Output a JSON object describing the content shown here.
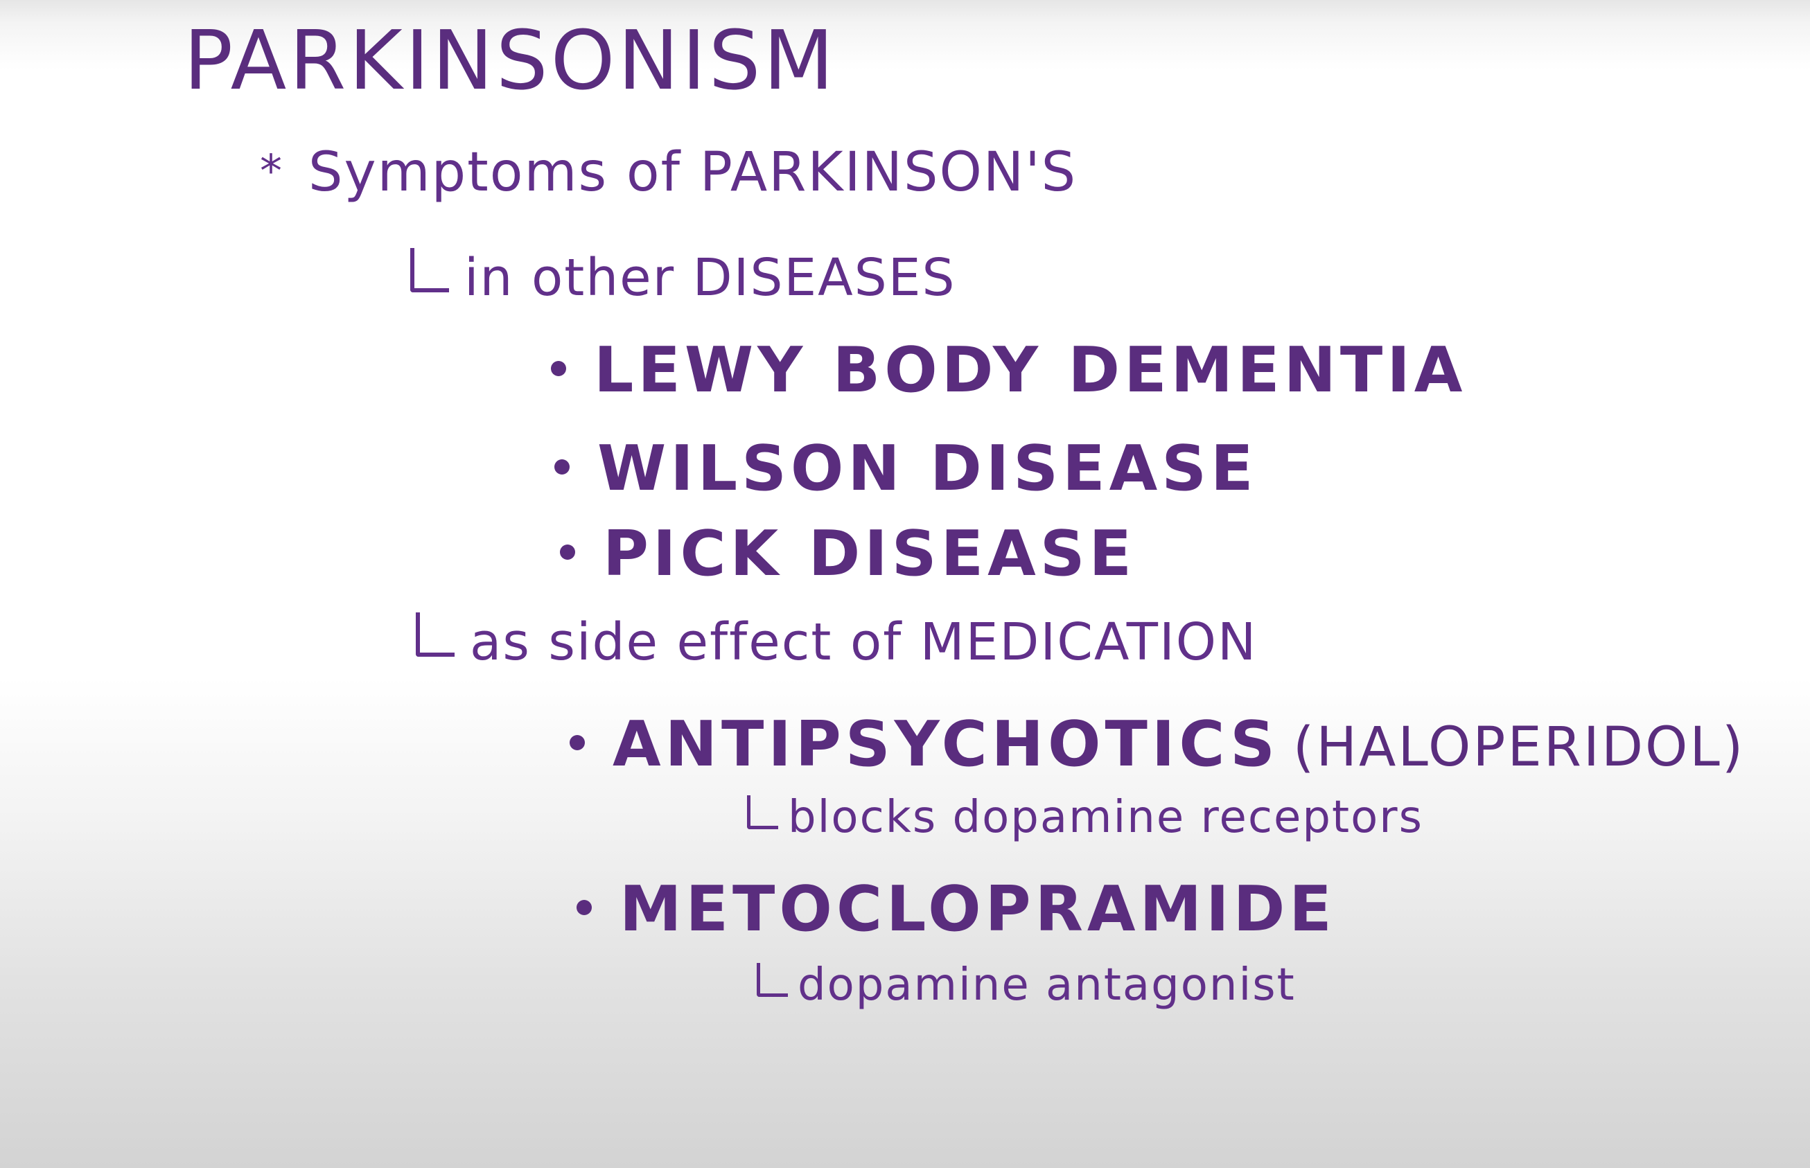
{
  "title": "PARKINSONISM",
  "heading": {
    "bullet": "*",
    "text": "Symptoms of PARKINSON'S"
  },
  "groups": [
    {
      "label": "in other DISEASES",
      "items": [
        {
          "text": "LEWY BODY DEMENTIA"
        },
        {
          "text": "WILSON DISEASE"
        },
        {
          "text": "PICK DISEASE"
        }
      ]
    },
    {
      "label": "as side effect of MEDICATION",
      "items": [
        {
          "text": "ANTIPSYCHOTICS",
          "paren": "(HALOPERIDOL)",
          "note": "blocks dopamine receptors"
        },
        {
          "text": "METOCLOPRAMIDE",
          "note": "dopamine antagonist"
        }
      ]
    }
  ],
  "colors": {
    "ink": "#5a2d7e",
    "ink_light": "#61308a"
  }
}
